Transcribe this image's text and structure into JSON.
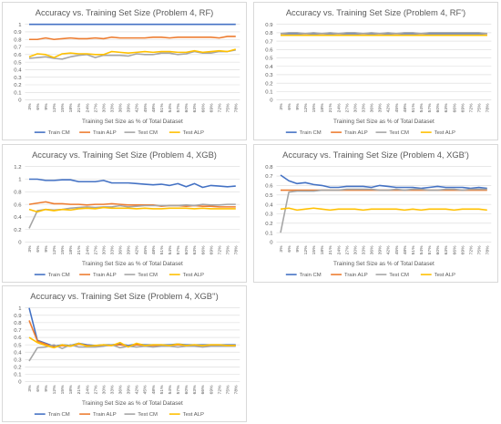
{
  "chart_data": [
    {
      "type": "line",
      "title": "Accuracy vs. Training Set Size (Problem 4, RF)",
      "xlabel": "Training Set Size as % of Total Dataset",
      "ylabel": "",
      "ylim": [
        0,
        1
      ],
      "yticks": [
        "0",
        "0.1",
        "0.2",
        "0.3",
        "0.4",
        "0.5",
        "0.6",
        "0.7",
        "0.8",
        "0.9",
        "1"
      ],
      "grid": true,
      "legend": "bottom",
      "categories": [
        "3%",
        "6%",
        "9%",
        "12%",
        "15%",
        "18%",
        "21%",
        "24%",
        "27%",
        "30%",
        "33%",
        "36%",
        "39%",
        "42%",
        "45%",
        "48%",
        "51%",
        "54%",
        "57%",
        "60%",
        "63%",
        "66%",
        "69%",
        "72%",
        "75%",
        "78%"
      ],
      "series": [
        {
          "name": "Train CM",
          "color": "#4472C4",
          "values": [
            1,
            1,
            1,
            1,
            1,
            1,
            1,
            1,
            1,
            1,
            1,
            1,
            1,
            1,
            1,
            1,
            1,
            1,
            1,
            1,
            1,
            1,
            1,
            1,
            1,
            1
          ]
        },
        {
          "name": "Train ALP",
          "color": "#ED7D31",
          "values": [
            0.8,
            0.8,
            0.82,
            0.8,
            0.81,
            0.82,
            0.81,
            0.81,
            0.82,
            0.81,
            0.83,
            0.82,
            0.82,
            0.82,
            0.82,
            0.83,
            0.83,
            0.82,
            0.83,
            0.83,
            0.83,
            0.83,
            0.83,
            0.82,
            0.84,
            0.84
          ]
        },
        {
          "name": "Test CM",
          "color": "#A5A5A5",
          "values": [
            0.55,
            0.56,
            0.57,
            0.55,
            0.54,
            0.57,
            0.59,
            0.6,
            0.56,
            0.59,
            0.59,
            0.59,
            0.58,
            0.61,
            0.6,
            0.6,
            0.62,
            0.62,
            0.6,
            0.61,
            0.64,
            0.62,
            0.62,
            0.64,
            0.64,
            0.66
          ]
        },
        {
          "name": "Test ALP",
          "color": "#FFC000",
          "values": [
            0.57,
            0.61,
            0.6,
            0.56,
            0.61,
            0.62,
            0.61,
            0.61,
            0.6,
            0.6,
            0.64,
            0.63,
            0.62,
            0.63,
            0.64,
            0.63,
            0.64,
            0.64,
            0.63,
            0.63,
            0.65,
            0.63,
            0.64,
            0.65,
            0.64,
            0.67
          ]
        }
      ]
    },
    {
      "type": "line",
      "title": "Accuracy vs. Training Set Size (Problem 4, RF')",
      "xlabel": "Training Set Size as % of Total Dataset",
      "ylabel": "",
      "ylim": [
        0,
        0.9
      ],
      "yticks": [
        "0",
        "0.1",
        "0.2",
        "0.3",
        "0.4",
        "0.5",
        "0.6",
        "0.7",
        "0.8",
        "0.9"
      ],
      "grid": true,
      "legend": "bottom",
      "categories": [
        "3%",
        "6%",
        "9%",
        "12%",
        "15%",
        "18%",
        "21%",
        "24%",
        "27%",
        "30%",
        "33%",
        "36%",
        "39%",
        "42%",
        "45%",
        "48%",
        "51%",
        "54%",
        "57%",
        "60%",
        "63%",
        "66%",
        "69%",
        "72%",
        "75%",
        "78%"
      ],
      "series": [
        {
          "name": "Train CM",
          "color": "#4472C4",
          "values": [
            0.79,
            0.79,
            0.79,
            0.79,
            0.79,
            0.79,
            0.79,
            0.79,
            0.79,
            0.79,
            0.79,
            0.79,
            0.79,
            0.79,
            0.79,
            0.79,
            0.79,
            0.79,
            0.79,
            0.79,
            0.79,
            0.79,
            0.79,
            0.79,
            0.79,
            0.79
          ]
        },
        {
          "name": "Train ALP",
          "color": "#ED7D31",
          "values": [
            0.77,
            0.77,
            0.77,
            0.77,
            0.77,
            0.77,
            0.77,
            0.77,
            0.77,
            0.77,
            0.77,
            0.77,
            0.77,
            0.77,
            0.77,
            0.77,
            0.77,
            0.77,
            0.77,
            0.77,
            0.77,
            0.77,
            0.77,
            0.77,
            0.77,
            0.77
          ]
        },
        {
          "name": "Test CM",
          "color": "#A5A5A5",
          "values": [
            0.79,
            0.8,
            0.8,
            0.79,
            0.8,
            0.79,
            0.8,
            0.79,
            0.8,
            0.8,
            0.79,
            0.8,
            0.79,
            0.8,
            0.79,
            0.8,
            0.8,
            0.79,
            0.8,
            0.8,
            0.8,
            0.8,
            0.8,
            0.8,
            0.8,
            0.79
          ]
        },
        {
          "name": "Test ALP",
          "color": "#FFC000",
          "values": [
            0.77,
            0.77,
            0.77,
            0.77,
            0.77,
            0.77,
            0.77,
            0.77,
            0.77,
            0.77,
            0.77,
            0.77,
            0.77,
            0.77,
            0.77,
            0.77,
            0.77,
            0.77,
            0.77,
            0.77,
            0.77,
            0.77,
            0.77,
            0.77,
            0.77,
            0.77
          ]
        }
      ]
    },
    {
      "type": "line",
      "title": "Accuracy vs. Training Set Size (Problem 4, XGB)",
      "xlabel": "Training Set Size as % of Total Dataset",
      "ylabel": "",
      "ylim": [
        0,
        1.2
      ],
      "yticks": [
        "0",
        "0.2",
        "0.4",
        "0.6",
        "0.8",
        "1",
        "1.2"
      ],
      "grid": true,
      "legend": "bottom",
      "categories": [
        "3%",
        "6%",
        "9%",
        "12%",
        "15%",
        "18%",
        "21%",
        "24%",
        "27%",
        "30%",
        "33%",
        "36%",
        "39%",
        "42%",
        "45%",
        "48%",
        "51%",
        "54%",
        "57%",
        "60%",
        "63%",
        "66%",
        "69%",
        "72%",
        "75%",
        "78%"
      ],
      "series": [
        {
          "name": "Train CM",
          "color": "#4472C4",
          "values": [
            1.0,
            1.0,
            0.98,
            0.98,
            0.99,
            0.99,
            0.96,
            0.96,
            0.96,
            0.98,
            0.94,
            0.94,
            0.94,
            0.93,
            0.92,
            0.91,
            0.92,
            0.9,
            0.93,
            0.88,
            0.93,
            0.87,
            0.9,
            0.89,
            0.88,
            0.89
          ]
        },
        {
          "name": "Train ALP",
          "color": "#ED7D31",
          "values": [
            0.6,
            0.62,
            0.64,
            0.61,
            0.61,
            0.6,
            0.6,
            0.59,
            0.6,
            0.6,
            0.61,
            0.6,
            0.59,
            0.59,
            0.59,
            0.59,
            0.57,
            0.58,
            0.58,
            0.57,
            0.58,
            0.57,
            0.57,
            0.56,
            0.56,
            0.56
          ]
        },
        {
          "name": "Test CM",
          "color": "#A5A5A5",
          "values": [
            0.22,
            0.5,
            0.52,
            0.51,
            0.52,
            0.54,
            0.55,
            0.56,
            0.55,
            0.56,
            0.56,
            0.58,
            0.56,
            0.57,
            0.58,
            0.58,
            0.58,
            0.58,
            0.58,
            0.59,
            0.58,
            0.6,
            0.59,
            0.59,
            0.6,
            0.6
          ]
        },
        {
          "name": "Test ALP",
          "color": "#FFC000",
          "values": [
            0.52,
            0.48,
            0.52,
            0.5,
            0.52,
            0.51,
            0.53,
            0.54,
            0.53,
            0.55,
            0.54,
            0.54,
            0.54,
            0.53,
            0.54,
            0.53,
            0.53,
            0.54,
            0.54,
            0.54,
            0.53,
            0.54,
            0.53,
            0.53,
            0.53,
            0.53
          ]
        }
      ]
    },
    {
      "type": "line",
      "title": "Accuracy vs. Training Set Size (Problem 4, XGB')",
      "xlabel": "Training Set Size as % of Total Dataset",
      "ylabel": "",
      "ylim": [
        0,
        0.8
      ],
      "yticks": [
        "0",
        "0.1",
        "0.2",
        "0.3",
        "0.4",
        "0.5",
        "0.6",
        "0.7",
        "0.8"
      ],
      "grid": true,
      "legend": "bottom",
      "categories": [
        "3%",
        "6%",
        "9%",
        "12%",
        "15%",
        "18%",
        "21%",
        "24%",
        "27%",
        "30%",
        "33%",
        "36%",
        "39%",
        "42%",
        "45%",
        "48%",
        "51%",
        "54%",
        "57%",
        "60%",
        "63%",
        "66%",
        "69%",
        "72%",
        "75%",
        "78%"
      ],
      "series": [
        {
          "name": "Train CM",
          "color": "#4472C4",
          "values": [
            0.71,
            0.65,
            0.62,
            0.63,
            0.61,
            0.6,
            0.58,
            0.58,
            0.59,
            0.59,
            0.59,
            0.58,
            0.6,
            0.59,
            0.58,
            0.58,
            0.58,
            0.57,
            0.58,
            0.59,
            0.58,
            0.58,
            0.58,
            0.57,
            0.58,
            0.57
          ]
        },
        {
          "name": "Train ALP",
          "color": "#ED7D31",
          "values": [
            0.55,
            0.55,
            0.55,
            0.55,
            0.55,
            0.55,
            0.55,
            0.55,
            0.55,
            0.55,
            0.55,
            0.55,
            0.55,
            0.55,
            0.55,
            0.55,
            0.55,
            0.55,
            0.55,
            0.55,
            0.55,
            0.55,
            0.55,
            0.55,
            0.55,
            0.55
          ]
        },
        {
          "name": "Test CM",
          "color": "#A5A5A5",
          "values": [
            0.1,
            0.53,
            0.54,
            0.54,
            0.54,
            0.55,
            0.55,
            0.55,
            0.56,
            0.56,
            0.56,
            0.56,
            0.55,
            0.55,
            0.56,
            0.55,
            0.56,
            0.56,
            0.55,
            0.55,
            0.56,
            0.56,
            0.55,
            0.56,
            0.56,
            0.56
          ]
        },
        {
          "name": "Test ALP",
          "color": "#FFC000",
          "values": [
            0.35,
            0.36,
            0.34,
            0.35,
            0.36,
            0.35,
            0.34,
            0.35,
            0.35,
            0.35,
            0.34,
            0.35,
            0.35,
            0.35,
            0.35,
            0.34,
            0.35,
            0.34,
            0.35,
            0.35,
            0.35,
            0.34,
            0.35,
            0.35,
            0.35,
            0.34
          ]
        }
      ]
    },
    {
      "type": "line",
      "title": "Accuracy vs. Training Set Size (Problem 4, XGB'')",
      "xlabel": "Training Set Size as % of Total Dataset",
      "ylabel": "",
      "ylim": [
        0,
        1
      ],
      "yticks": [
        "0",
        "0.1",
        "0.2",
        "0.3",
        "0.4",
        "0.5",
        "0.6",
        "0.7",
        "0.8",
        "0.9",
        "1"
      ],
      "grid": true,
      "legend": "bottom",
      "categories": [
        "3%",
        "6%",
        "9%",
        "12%",
        "15%",
        "18%",
        "21%",
        "24%",
        "27%",
        "30%",
        "33%",
        "36%",
        "39%",
        "42%",
        "45%",
        "48%",
        "51%",
        "54%",
        "57%",
        "60%",
        "63%",
        "66%",
        "69%",
        "72%",
        "75%",
        "78%"
      ],
      "series": [
        {
          "name": "Train CM",
          "color": "#4472C4",
          "values": [
            1.0,
            0.56,
            0.52,
            0.48,
            0.5,
            0.49,
            0.52,
            0.5,
            0.49,
            0.5,
            0.5,
            0.51,
            0.49,
            0.51,
            0.5,
            0.5,
            0.5,
            0.5,
            0.51,
            0.5,
            0.5,
            0.5,
            0.5,
            0.5,
            0.5,
            0.5
          ]
        },
        {
          "name": "Train ALP",
          "color": "#ED7D31",
          "values": [
            0.83,
            0.55,
            0.51,
            0.47,
            0.49,
            0.48,
            0.51,
            0.49,
            0.48,
            0.49,
            0.49,
            0.5,
            0.48,
            0.5,
            0.49,
            0.49,
            0.49,
            0.49,
            0.5,
            0.49,
            0.49,
            0.49,
            0.49,
            0.49,
            0.49,
            0.49
          ]
        },
        {
          "name": "Test CM",
          "color": "#A5A5A5",
          "values": [
            0.28,
            0.46,
            0.47,
            0.5,
            0.45,
            0.5,
            0.47,
            0.47,
            0.47,
            0.48,
            0.5,
            0.46,
            0.48,
            0.47,
            0.48,
            0.47,
            0.48,
            0.48,
            0.47,
            0.48,
            0.48,
            0.47,
            0.48,
            0.48,
            0.48,
            0.48
          ]
        },
        {
          "name": "Test ALP",
          "color": "#FFC000",
          "values": [
            0.6,
            0.53,
            0.49,
            0.46,
            0.5,
            0.48,
            0.52,
            0.48,
            0.49,
            0.5,
            0.49,
            0.53,
            0.47,
            0.52,
            0.49,
            0.5,
            0.5,
            0.49,
            0.51,
            0.49,
            0.5,
            0.49,
            0.5,
            0.5,
            0.49,
            0.49
          ]
        }
      ]
    }
  ]
}
